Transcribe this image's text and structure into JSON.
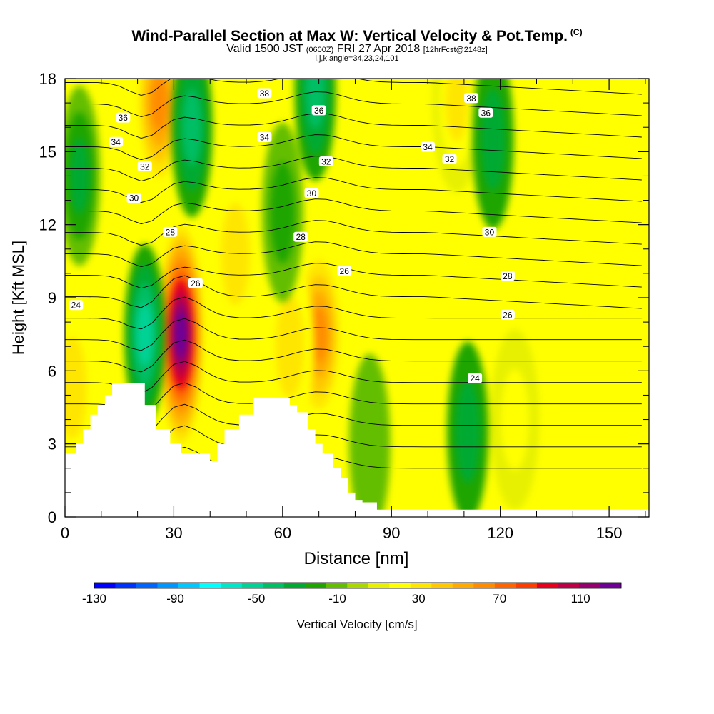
{
  "header": {
    "title": "Wind-Parallel Section at Max W: Vertical Velocity & Pot.Temp.",
    "title_mark": "(C)",
    "valid_a": "Valid 1500 JST",
    "valid_b": "(0600Z)",
    "valid_c": "FRI 27 Apr 2018",
    "valid_d": "[12hrFcst@2148z]",
    "params": "i,j,k,angle=34,23,24,101"
  },
  "chart_data": {
    "type": "heatmap",
    "xlabel": "Distance [nm]",
    "ylabel": "Height [Kft MSL]",
    "xlim": [
      0,
      161
    ],
    "ylim": [
      0,
      18
    ],
    "x_ticks": [
      "0",
      "30",
      "60",
      "90",
      "120",
      "150"
    ],
    "y_ticks": [
      "0",
      "3",
      "6",
      "9",
      "12",
      "15",
      "18"
    ],
    "colorbar": {
      "label": "Vertical Velocity [cm/s]",
      "tick_labels": [
        "-130",
        "-90",
        "-50",
        "-10",
        "30",
        "70",
        "110"
      ],
      "range": [
        -130,
        130
      ],
      "colors": [
        "#0000ff",
        "#0032ff",
        "#0064ff",
        "#0096ff",
        "#00c8ff",
        "#00ffff",
        "#00e6c8",
        "#00d296",
        "#00be64",
        "#00aa32",
        "#1ea500",
        "#64be00",
        "#aad700",
        "#e6f000",
        "#ffff00",
        "#ffe600",
        "#ffc800",
        "#ffaa00",
        "#ff8c00",
        "#ff6400",
        "#ff3c00",
        "#e6001e",
        "#be0046",
        "#96006e",
        "#6e0096"
      ]
    },
    "velocity_features": [
      {
        "kind": "updraft",
        "x": 32,
        "z": 7.5,
        "peak": 120
      },
      {
        "kind": "updraft",
        "x": 26,
        "z": 17,
        "peak": 60
      },
      {
        "kind": "updraft",
        "x": 70,
        "z": 7.5,
        "peak": 60
      },
      {
        "kind": "updraft",
        "x": 108,
        "z": 17,
        "peak": 30
      },
      {
        "kind": "updraft",
        "x": 47,
        "z": 10.8,
        "peak": 25
      },
      {
        "kind": "updraft",
        "x": 62,
        "z": 7,
        "peak": 25
      },
      {
        "kind": "updraft",
        "x": 124,
        "z": 4,
        "peak": 20
      },
      {
        "kind": "updraft",
        "x": 2,
        "z": 5.3,
        "peak": 25
      },
      {
        "kind": "downdraft",
        "x": 22,
        "z": 7.5,
        "peak": -50
      },
      {
        "kind": "downdraft",
        "x": 35,
        "z": 16,
        "peak": -40
      },
      {
        "kind": "downdraft",
        "x": 4,
        "z": 14,
        "peak": -30
      },
      {
        "kind": "downdraft",
        "x": 69,
        "z": 17.5,
        "peak": -35
      },
      {
        "kind": "downdraft",
        "x": 118,
        "z": 15.5,
        "peak": -25
      },
      {
        "kind": "downdraft",
        "x": 111,
        "z": 3.5,
        "peak": -25
      },
      {
        "kind": "downdraft",
        "x": 60,
        "z": 12.5,
        "peak": -15
      },
      {
        "kind": "downdraft",
        "x": 84,
        "z": 3,
        "peak": -10
      }
    ],
    "theta_contour_labels": [
      {
        "text": "24",
        "x": 3,
        "z": 8.7
      },
      {
        "text": "24",
        "x": 113,
        "z": 5.7
      },
      {
        "text": "26",
        "x": 36,
        "z": 9.6
      },
      {
        "text": "26",
        "x": 77,
        "z": 10.1
      },
      {
        "text": "26",
        "x": 122,
        "z": 8.3
      },
      {
        "text": "28",
        "x": 29,
        "z": 11.7
      },
      {
        "text": "28",
        "x": 65,
        "z": 11.5
      },
      {
        "text": "28",
        "x": 122,
        "z": 9.9
      },
      {
        "text": "30",
        "x": 19,
        "z": 13.1
      },
      {
        "text": "30",
        "x": 68,
        "z": 13.3
      },
      {
        "text": "30",
        "x": 117,
        "z": 11.7
      },
      {
        "text": "32",
        "x": 22,
        "z": 14.4
      },
      {
        "text": "32",
        "x": 72,
        "z": 14.6
      },
      {
        "text": "32",
        "x": 106,
        "z": 14.7
      },
      {
        "text": "34",
        "x": 14,
        "z": 15.4
      },
      {
        "text": "34",
        "x": 55,
        "z": 15.6
      },
      {
        "text": "34",
        "x": 100,
        "z": 15.2
      },
      {
        "text": "36",
        "x": 16,
        "z": 16.4
      },
      {
        "text": "36",
        "x": 70,
        "z": 16.7
      },
      {
        "text": "36",
        "x": 116,
        "z": 16.6
      },
      {
        "text": "38",
        "x": 55,
        "z": 17.4
      },
      {
        "text": "38",
        "x": 112,
        "z": 17.2
      }
    ],
    "terrain_kft": [
      [
        0,
        2.6
      ],
      [
        3,
        3.0
      ],
      [
        5,
        3.6
      ],
      [
        7,
        4.2
      ],
      [
        9,
        4.6
      ],
      [
        11,
        5.0
      ],
      [
        13,
        5.5
      ],
      [
        16,
        5.5
      ],
      [
        18,
        5.5
      ],
      [
        20,
        5.5
      ],
      [
        22,
        4.6
      ],
      [
        25,
        3.6
      ],
      [
        27,
        3.6
      ],
      [
        29,
        3.0
      ],
      [
        32,
        2.6
      ],
      [
        36,
        2.6
      ],
      [
        40,
        2.3
      ],
      [
        42,
        3.0
      ],
      [
        44,
        3.6
      ],
      [
        46,
        3.6
      ],
      [
        48,
        4.2
      ],
      [
        52,
        4.9
      ],
      [
        60,
        4.9
      ],
      [
        62,
        4.6
      ],
      [
        64,
        4.3
      ],
      [
        67,
        3.6
      ],
      [
        69,
        3.0
      ],
      [
        71,
        2.6
      ],
      [
        74,
        2.0
      ],
      [
        76,
        1.6
      ],
      [
        78,
        1.0
      ],
      [
        80,
        0.7
      ],
      [
        82,
        0.6
      ],
      [
        86,
        0.3
      ],
      [
        110,
        0.3
      ],
      [
        161,
        0.3
      ]
    ]
  }
}
